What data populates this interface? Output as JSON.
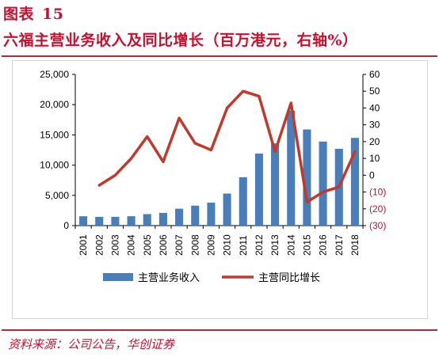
{
  "figure": {
    "label": "图表",
    "number": "15",
    "title": "六福主营业务收入及同比增长（百万港元，右轴%）"
  },
  "source": "资料来源：公司公告，华创证券",
  "colors": {
    "accent": "#c8102e",
    "bar": "#4a7ebb",
    "line": "#c0392b",
    "axis_right_negative": "#c8102e"
  },
  "chart_data": {
    "type": "bar+line",
    "categories": [
      "2001",
      "2002",
      "2003",
      "2004",
      "2005",
      "2006",
      "2007",
      "2008",
      "2009",
      "2010",
      "2011",
      "2012",
      "2013",
      "2014",
      "2015",
      "2016",
      "2017",
      "2018"
    ],
    "series": [
      {
        "name": "主营业务收入",
        "type": "bar",
        "axis": "left",
        "values": [
          1550,
          1450,
          1450,
          1550,
          1900,
          2100,
          2800,
          3300,
          3800,
          5300,
          8000,
          11900,
          13600,
          19000,
          15900,
          13900,
          12700,
          14500
        ]
      },
      {
        "name": "主营同比增长",
        "type": "line",
        "axis": "right",
        "values": [
          null,
          -6,
          0,
          10,
          23,
          8,
          34,
          19,
          15,
          40,
          50,
          47,
          14,
          43,
          -16,
          -10,
          -7,
          14
        ]
      }
    ],
    "left_axis": {
      "ylim": [
        0,
        25000
      ],
      "ticks": [
        "0",
        "5,000",
        "10,000",
        "15,000",
        "20,000",
        "25,000"
      ]
    },
    "right_axis": {
      "ylim": [
        -30,
        60
      ],
      "ticks": [
        "(30)",
        "(20)",
        "(10)",
        "0",
        "10",
        "20",
        "30",
        "40",
        "50",
        "60"
      ]
    },
    "legend_position": "bottom"
  }
}
